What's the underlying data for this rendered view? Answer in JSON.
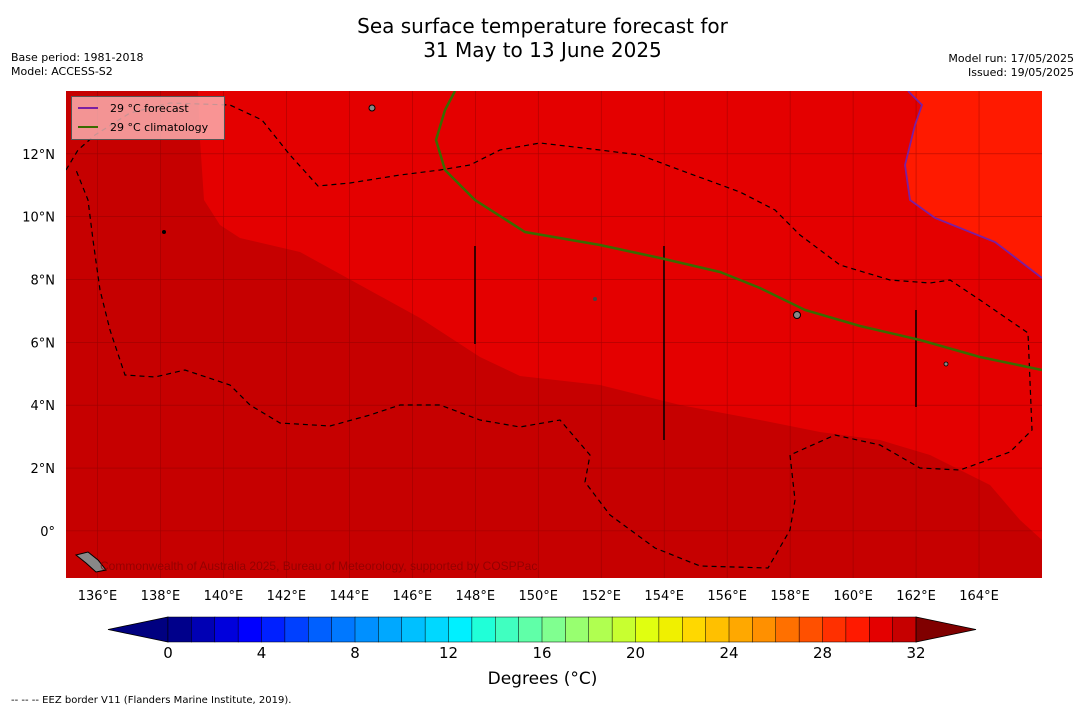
{
  "title": {
    "line1": "Sea surface temperature forecast for",
    "line2": "31 May to 13 June 2025"
  },
  "meta_left": {
    "base_period": "Base period: 1981-2018",
    "model": "Model: ACCESS-S2"
  },
  "meta_right": {
    "model_run": "Model run: 17/05/2025",
    "issued": "Issued: 19/05/2025"
  },
  "map": {
    "lat_labels": [
      "12°N",
      "10°N",
      "8°N",
      "6°N",
      "4°N",
      "2°N",
      "0°"
    ],
    "lon_labels": [
      "136°E",
      "138°E",
      "140°E",
      "142°E",
      "144°E",
      "146°E",
      "148°E",
      "150°E",
      "152°E",
      "154°E",
      "156°E",
      "158°E",
      "160°E",
      "162°E",
      "164°E"
    ],
    "copyright": "Commonwealth of Australia 2025, Bureau of Meteorology, supported by COSPPac",
    "colors": {
      "band_30_31": "#c60000",
      "band_31_32": "#e40000",
      "band_32_plus": "#ff1a00",
      "forecast_line": "#7a1fa2",
      "climatology_line": "#3a6b00"
    }
  },
  "legend": {
    "forecast_label": "29 °C  forecast",
    "climatology_label": "29 °C  climatology"
  },
  "colorbar": {
    "tick_labels": [
      "0",
      "4",
      "8",
      "12",
      "16",
      "20",
      "24",
      "28",
      "32"
    ],
    "label": "Degrees (°C)",
    "colors": [
      "#00008b",
      "#0000b4",
      "#0000dc",
      "#0000ff",
      "#0020ff",
      "#0040ff",
      "#0060ff",
      "#0078ff",
      "#0090ff",
      "#00a8ff",
      "#00c0ff",
      "#00d8ff",
      "#00f0ff",
      "#20ffd8",
      "#40ffc0",
      "#60ffa8",
      "#80ff90",
      "#98ff70",
      "#b0ff50",
      "#c8ff30",
      "#e0ff10",
      "#f0f000",
      "#ffd800",
      "#ffc000",
      "#ffa800",
      "#ff9000",
      "#ff7000",
      "#ff5000",
      "#ff3000",
      "#ff1a00",
      "#e40000",
      "#c60000",
      "#8b0000"
    ],
    "under_color": "#000080",
    "over_color": "#800000"
  },
  "footer": {
    "eez_note": "--  --  -- EEZ border V11 (Flanders Marine Institute, 2019)."
  }
}
